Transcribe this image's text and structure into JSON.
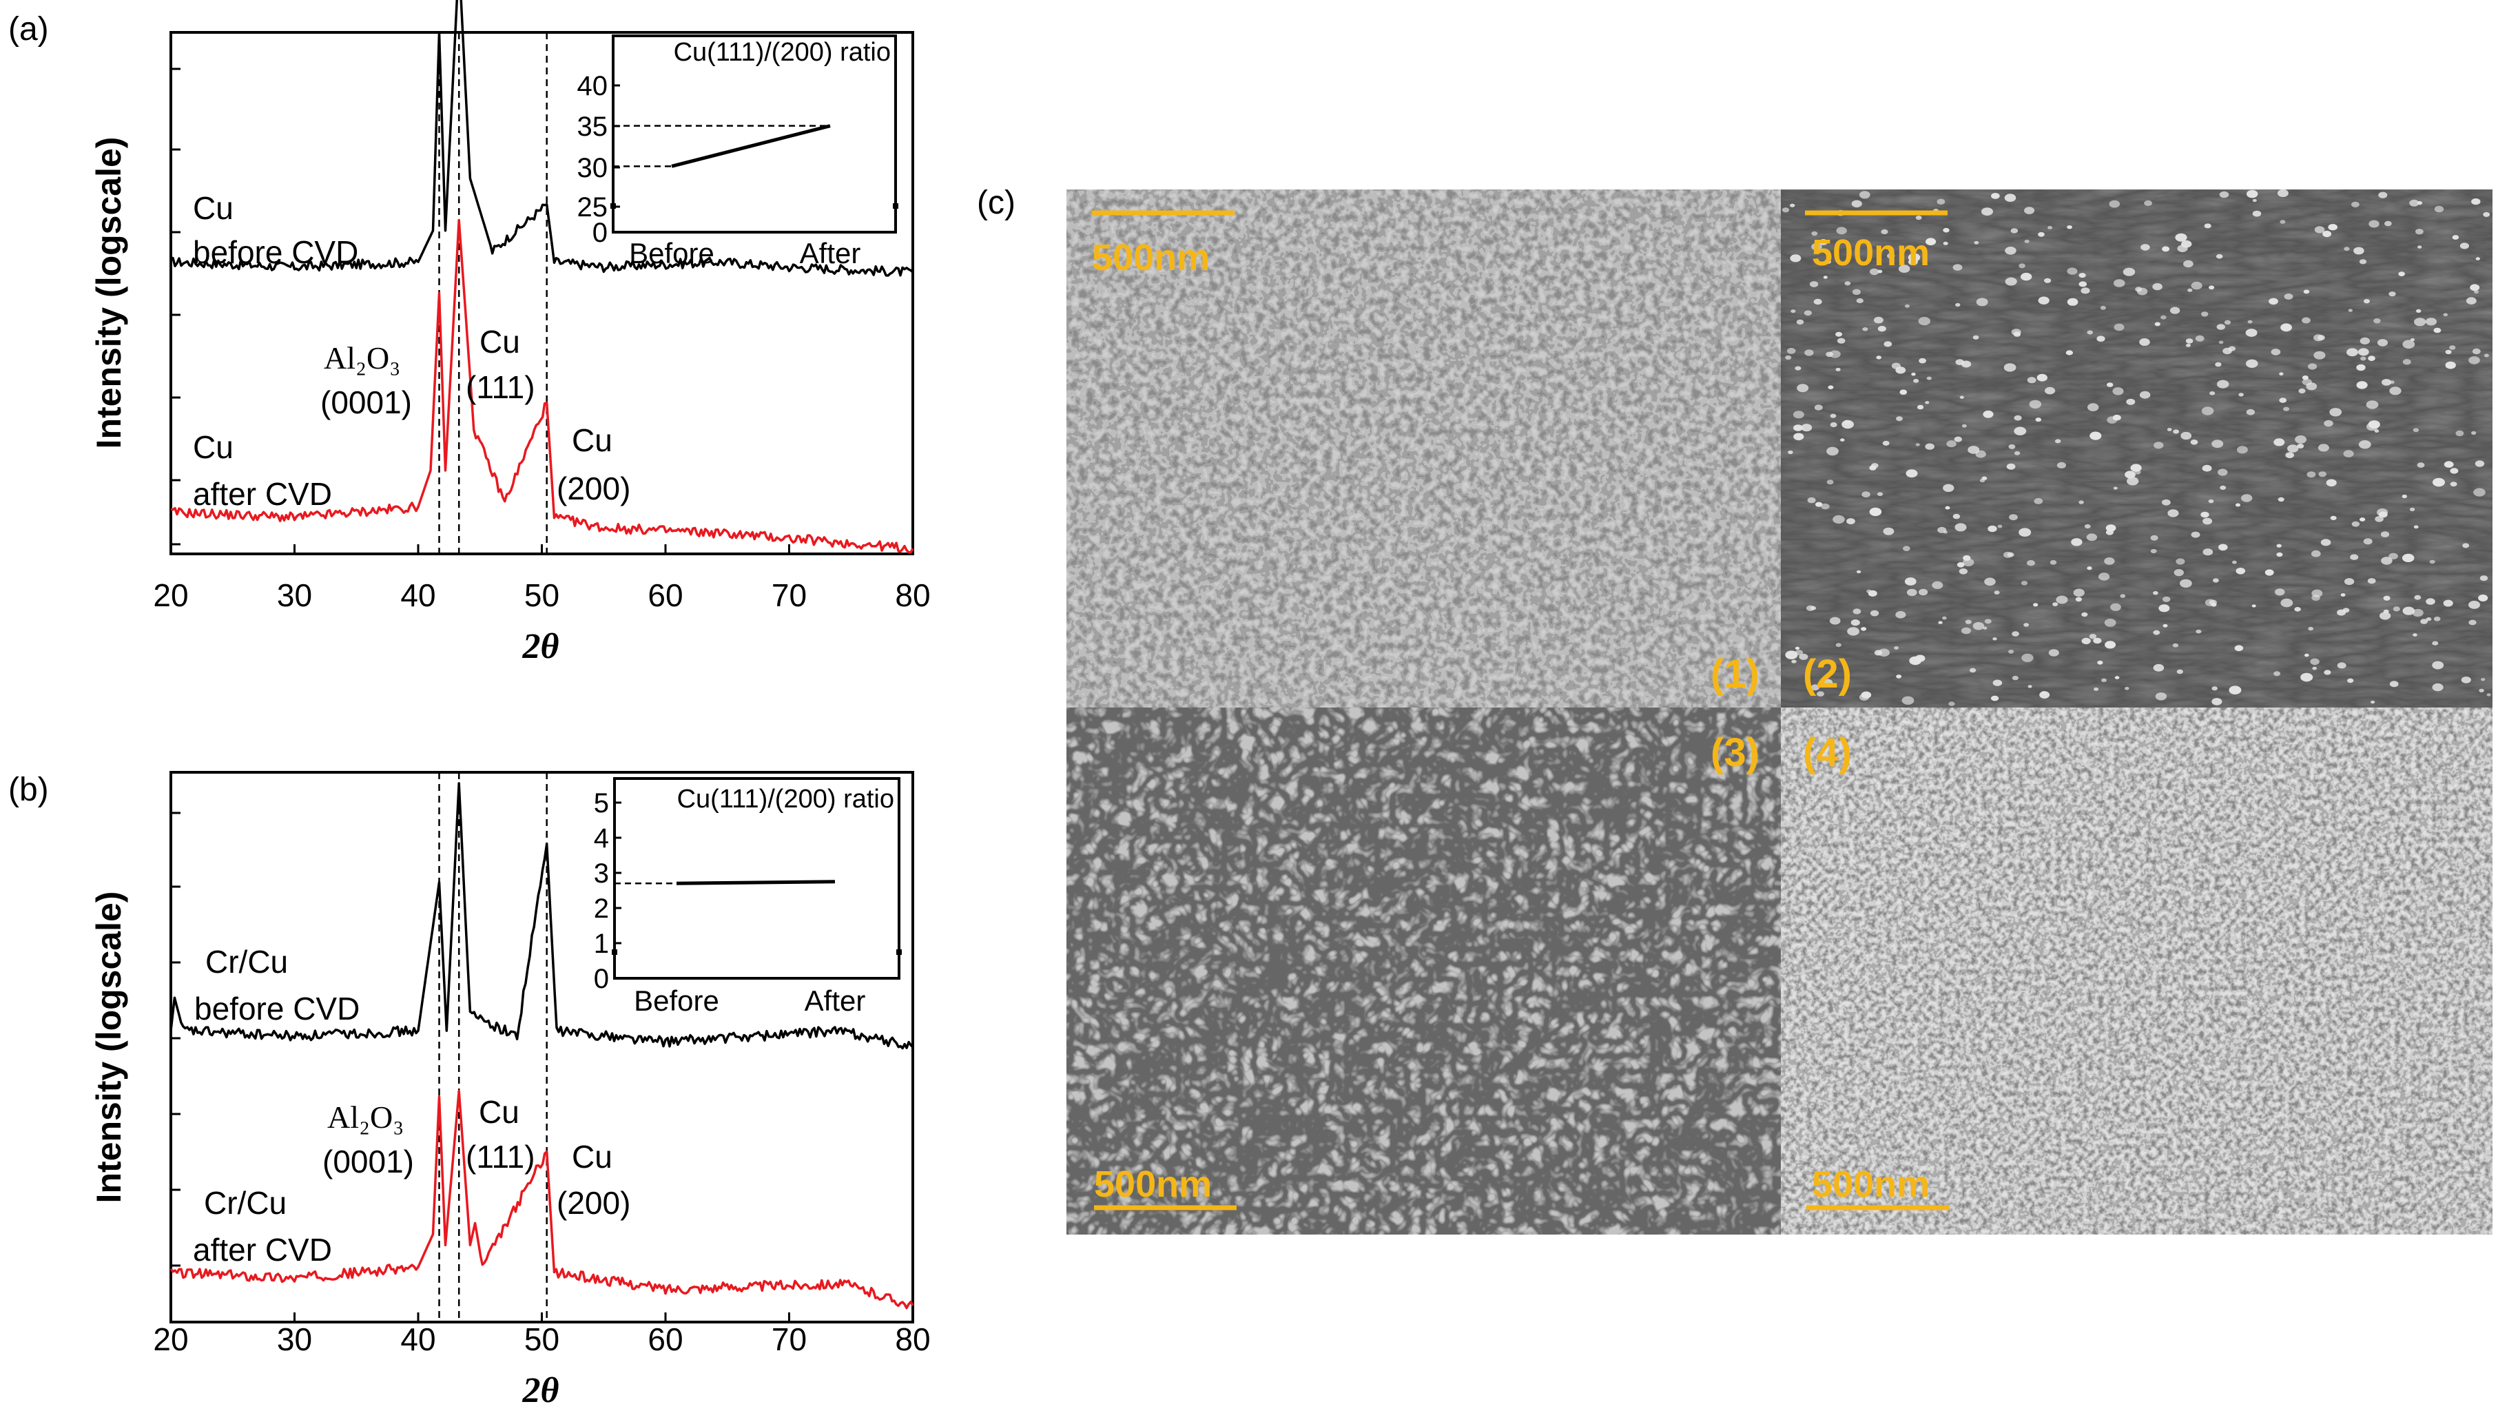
{
  "panels": {
    "a": {
      "label": "(a)",
      "ylabel": "Intensity (logscale)",
      "xlabel": "2θ",
      "xlim": [
        20,
        80
      ],
      "xticks": [
        "20",
        "30",
        "40",
        "50",
        "60",
        "70",
        "80"
      ],
      "dashed_lines_2theta": [
        41.7,
        43.3,
        50.4
      ],
      "labels": {
        "before": [
          "Cu",
          "before CVD"
        ],
        "after": [
          "Cu",
          "after CVD"
        ],
        "al2o3": "Al₂O₃",
        "al2o3_hkl": "(0001)",
        "cu111": [
          "Cu",
          "(111)"
        ],
        "cu200": [
          "Cu",
          "(200)"
        ]
      },
      "inset": {
        "title": "Cu(111)/(200) ratio",
        "yticks": [
          "0",
          "25",
          "30",
          "35",
          "40"
        ],
        "categories": [
          "Before",
          "After"
        ]
      }
    },
    "b": {
      "label": "(b)",
      "ylabel": "Intensity (logscale)",
      "xlabel": "2θ",
      "xlim": [
        20,
        80
      ],
      "xticks": [
        "20",
        "30",
        "40",
        "50",
        "60",
        "70",
        "80"
      ],
      "dashed_lines_2theta": [
        41.7,
        43.3,
        50.4
      ],
      "labels": {
        "before": [
          "Cr/Cu",
          "before CVD"
        ],
        "after": [
          "Cr/Cu",
          "after CVD"
        ],
        "al2o3": "Al₂O₃",
        "al2o3_hkl": "(0001)",
        "cu111": [
          "Cu",
          "(111)"
        ],
        "cu200": [
          "Cu",
          "(200)"
        ]
      },
      "inset": {
        "title": "Cu(111)/(200) ratio",
        "yticks": [
          "0",
          "1",
          "2",
          "3",
          "4",
          "5"
        ],
        "categories": [
          "Before",
          "After"
        ]
      }
    },
    "c": {
      "label": "(c)",
      "images": [
        {
          "id": "(1)",
          "scale_bar": "500nm",
          "texture": "bright-grains"
        },
        {
          "id": "(2)",
          "scale_bar": "500nm",
          "texture": "sparse-particles"
        },
        {
          "id": "(3)",
          "scale_bar": "500nm",
          "texture": "wormlike"
        },
        {
          "id": "(4)",
          "scale_bar": "500nm",
          "texture": "dense-grains"
        }
      ]
    }
  },
  "colors": {
    "before": "#000000",
    "after": "#e8191f",
    "scale": "#f5b617"
  },
  "chart_data": [
    {
      "type": "line",
      "panel": "a",
      "xlabel": "2θ",
      "ylabel": "Intensity (logscale)",
      "xlim": [
        20,
        80
      ],
      "series": [
        {
          "name": "Cu before CVD",
          "x": [
            20,
            30,
            40,
            41.2,
            41.7,
            42.2,
            43.3,
            44.2,
            46,
            50.4,
            51,
            55,
            64.4,
            70,
            80
          ],
          "y": [
            0.56,
            0.55,
            0.56,
            0.62,
            1.0,
            0.62,
            1.14,
            0.72,
            0.58,
            0.67,
            0.56,
            0.55,
            0.56,
            0.55,
            0.54
          ]
        },
        {
          "name": "Cu after CVD",
          "x": [
            20,
            30,
            40,
            41.0,
            41.7,
            42.2,
            43.3,
            44.5,
            47,
            50.4,
            51,
            55,
            64.4,
            70,
            80
          ],
          "y": [
            0.08,
            0.07,
            0.09,
            0.16,
            0.5,
            0.16,
            0.64,
            0.24,
            0.1,
            0.29,
            0.07,
            0.05,
            0.04,
            0.03,
            0.01
          ]
        }
      ],
      "inset": {
        "type": "line",
        "title": "Cu(111)/(200) ratio",
        "categories": [
          "Before",
          "After"
        ],
        "values": [
          30,
          35
        ],
        "ylim": [
          0,
          40
        ]
      }
    },
    {
      "type": "line",
      "panel": "b",
      "xlabel": "2θ",
      "ylabel": "Intensity (logscale)",
      "xlim": [
        20,
        80
      ],
      "series": [
        {
          "name": "Cr/Cu before CVD",
          "x": [
            20,
            20.3,
            21,
            30,
            40,
            41.7,
            42.3,
            43.3,
            44.2,
            48,
            50.4,
            51.2,
            60,
            74.2,
            80
          ],
          "y": [
            0.53,
            0.59,
            0.53,
            0.52,
            0.53,
            0.8,
            0.53,
            0.98,
            0.56,
            0.52,
            0.87,
            0.53,
            0.51,
            0.53,
            0.5
          ]
        },
        {
          "name": "Cr/Cu after CVD",
          "x": [
            20,
            30,
            40,
            41.2,
            41.7,
            42.2,
            43.3,
            44.2,
            44.6,
            45.2,
            50.4,
            51,
            60,
            74.3,
            80
          ],
          "y": [
            0.09,
            0.08,
            0.1,
            0.16,
            0.41,
            0.14,
            0.42,
            0.14,
            0.18,
            0.1,
            0.31,
            0.09,
            0.06,
            0.07,
            0.03
          ]
        }
      ],
      "inset": {
        "type": "line",
        "title": "Cu(111)/(200) ratio",
        "categories": [
          "Before",
          "After"
        ],
        "values": [
          2.7,
          2.75
        ],
        "ylim": [
          0,
          5
        ]
      }
    }
  ]
}
